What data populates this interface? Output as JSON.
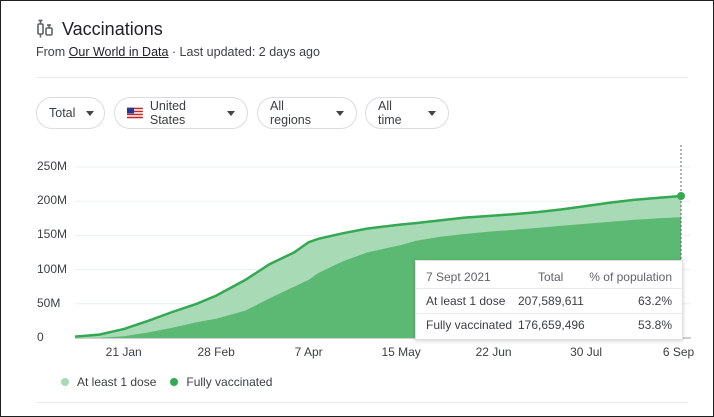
{
  "header": {
    "title": "Vaccinations",
    "source_prefix": "From ",
    "source_link": "Our World in Data",
    "updated": " · Last updated: 2 days ago"
  },
  "filters": {
    "metric": "Total",
    "country": "United States",
    "regions": "All regions",
    "time": "All time"
  },
  "tooltip": {
    "date": "7 Sept 2021",
    "col_total": "Total",
    "col_pct": "% of population",
    "rows": [
      {
        "label": "At least 1 dose",
        "total": "207,589,611",
        "pct": "63.2%"
      },
      {
        "label": "Fully vaccinated",
        "total": "176,659,496",
        "pct": "53.8%"
      }
    ]
  },
  "legend": {
    "one_dose": "At least 1 dose",
    "fully": "Fully vaccinated"
  },
  "colors": {
    "one_dose_fill": "#a8dab5",
    "fully_fill": "#5bb974",
    "line": "#34a853",
    "icon": "#5f6368"
  },
  "chart_data": {
    "type": "area",
    "y_ticks": [
      "0",
      "50M",
      "100M",
      "150M",
      "200M",
      "250M"
    ],
    "y_tick_values": [
      0,
      50000000,
      100000000,
      150000000,
      200000000,
      250000000
    ],
    "ylim": [
      0,
      250000000
    ],
    "x_ticks": [
      "21 Jan",
      "28 Feb",
      "7 Apr",
      "15 May",
      "22 Jun",
      "30 Jul",
      "6 Sep"
    ],
    "x_tick_days": [
      20,
      58,
      96,
      134,
      172,
      210,
      248
    ],
    "xlim_days": [
      0,
      249
    ],
    "x_ref_date": "2021-01-01",
    "series": [
      {
        "name": "At least 1 dose",
        "days": [
          0,
          10,
          20,
          30,
          40,
          50,
          58,
          70,
          80,
          90,
          96,
          100,
          110,
          120,
          134,
          140,
          150,
          160,
          172,
          180,
          190,
          200,
          210,
          220,
          230,
          240,
          249
        ],
        "values": [
          2000000,
          5000000,
          13000000,
          25000000,
          38000000,
          50000000,
          62000000,
          85000000,
          108000000,
          125000000,
          140000000,
          145000000,
          153000000,
          160000000,
          166000000,
          168000000,
          172000000,
          176000000,
          179000000,
          181000000,
          184000000,
          188000000,
          193000000,
          198000000,
          202000000,
          205000000,
          207589611
        ]
      },
      {
        "name": "Fully vaccinated",
        "days": [
          0,
          10,
          20,
          30,
          40,
          50,
          58,
          70,
          80,
          90,
          96,
          100,
          110,
          120,
          134,
          140,
          150,
          160,
          172,
          180,
          190,
          200,
          210,
          220,
          230,
          240,
          249
        ],
        "values": [
          0,
          300000,
          2500000,
          8000000,
          15000000,
          23000000,
          28000000,
          40000000,
          58000000,
          75000000,
          85000000,
          95000000,
          112000000,
          125000000,
          136000000,
          142000000,
          148000000,
          152000000,
          156000000,
          158000000,
          161000000,
          164000000,
          167000000,
          170000000,
          173000000,
          175000000,
          176659496
        ]
      }
    ]
  }
}
